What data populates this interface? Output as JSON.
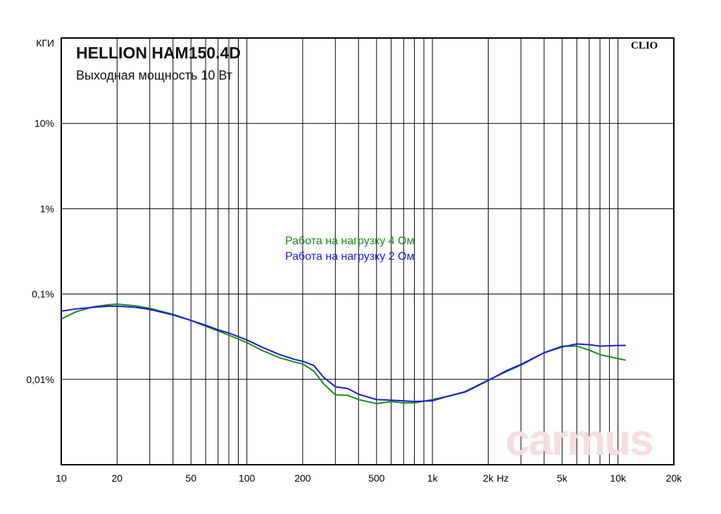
{
  "header": {
    "title": "HELLION HAM150.4D",
    "subtitle": "Выходная мощность 10 Вт",
    "software_label": "CLIO",
    "watermark": "carmus"
  },
  "legend": [
    {
      "label": "Работа на нагрузку 4 Ом",
      "color": "#1a8a1a"
    },
    {
      "label": "Работа на нагрузку 2 Ом",
      "color": "#1a1ad6"
    }
  ],
  "chart_data": {
    "type": "line",
    "title": "HELLION HAM150.4D",
    "subtitle": "Выходная мощность 10 Вт",
    "xlabel": "Hz",
    "ylabel": "КГИ",
    "x_scale": "log",
    "y_scale": "log",
    "xlim": [
      10,
      20000
    ],
    "ylim": [
      0.001,
      100
    ],
    "grid": true,
    "x_ticks": [
      {
        "value": 10,
        "label": "10"
      },
      {
        "value": 20,
        "label": "20"
      },
      {
        "value": 50,
        "label": "50"
      },
      {
        "value": 100,
        "label": "100"
      },
      {
        "value": 200,
        "label": "200"
      },
      {
        "value": 500,
        "label": "500"
      },
      {
        "value": 1000,
        "label": "1k"
      },
      {
        "value": 2000,
        "label": "2k"
      },
      {
        "value": 5000,
        "label": "5k"
      },
      {
        "value": 10000,
        "label": "10k"
      },
      {
        "value": 20000,
        "label": "20k"
      }
    ],
    "y_ticks": [
      {
        "value": 10,
        "label": "10%"
      },
      {
        "value": 1,
        "label": "1%"
      },
      {
        "value": 0.1,
        "label": "0,1%"
      },
      {
        "value": 0.01,
        "label": "0,01%"
      }
    ],
    "series": [
      {
        "name": "Работа на нагрузку 4 Ом",
        "color": "#1a8a1a",
        "x": [
          10,
          12,
          15,
          18,
          20,
          25,
          30,
          40,
          50,
          60,
          70,
          80,
          100,
          120,
          150,
          180,
          200,
          230,
          260,
          300,
          350,
          400,
          500,
          600,
          700,
          800,
          1000,
          1200,
          1500,
          2000,
          2500,
          3000,
          4000,
          5000,
          6000,
          7000,
          8000,
          10000,
          11000
        ],
        "y": [
          0.051,
          0.062,
          0.071,
          0.075,
          0.076,
          0.073,
          0.068,
          0.058,
          0.049,
          0.042,
          0.037,
          0.033,
          0.027,
          0.022,
          0.018,
          0.016,
          0.0152,
          0.0125,
          0.0088,
          0.0066,
          0.0065,
          0.0058,
          0.0052,
          0.0055,
          0.0053,
          0.0053,
          0.0058,
          0.0063,
          0.0072,
          0.0098,
          0.0123,
          0.0147,
          0.0205,
          0.0245,
          0.0245,
          0.022,
          0.0195,
          0.0175,
          0.0168
        ]
      },
      {
        "name": "Работа на нагрузку 2 Ом",
        "color": "#1a1ad6",
        "x": [
          10,
          12,
          15,
          18,
          20,
          25,
          30,
          40,
          50,
          60,
          70,
          80,
          100,
          120,
          150,
          180,
          200,
          230,
          260,
          300,
          350,
          400,
          500,
          600,
          700,
          800,
          1000,
          1200,
          1500,
          2000,
          2500,
          3000,
          4000,
          5000,
          6000,
          7000,
          8000,
          10000,
          11000
        ],
        "y": [
          0.063,
          0.067,
          0.07,
          0.072,
          0.072,
          0.07,
          0.066,
          0.057,
          0.049,
          0.043,
          0.038,
          0.035,
          0.029,
          0.024,
          0.0195,
          0.0172,
          0.0163,
          0.0145,
          0.0105,
          0.0082,
          0.0078,
          0.0067,
          0.0058,
          0.0057,
          0.0056,
          0.0055,
          0.0056,
          0.0063,
          0.0071,
          0.0097,
          0.0126,
          0.015,
          0.0205,
          0.024,
          0.026,
          0.0255,
          0.0245,
          0.025,
          0.025
        ]
      }
    ]
  }
}
